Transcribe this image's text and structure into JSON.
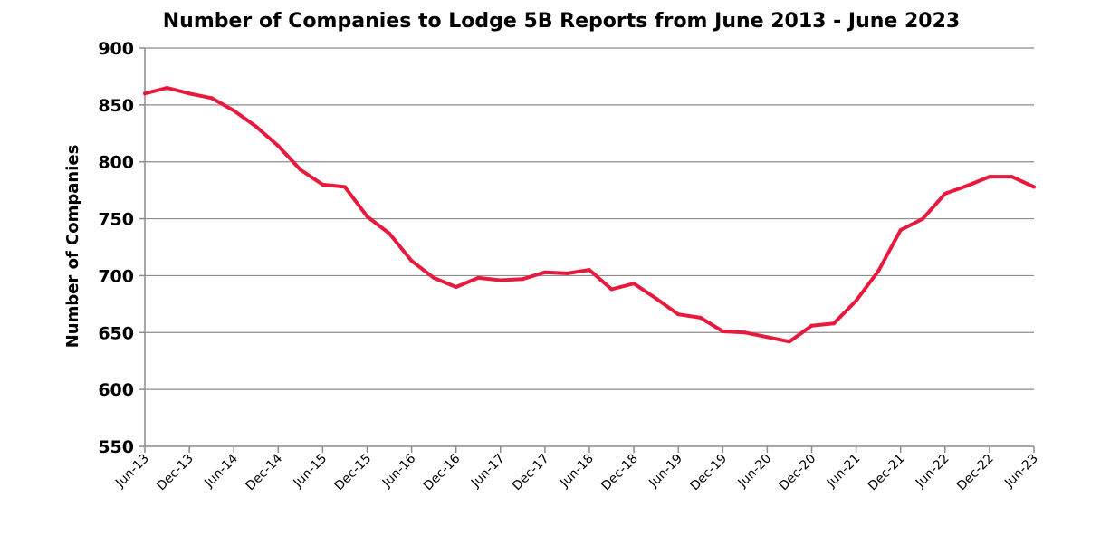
{
  "chart_data": {
    "type": "line",
    "title": "Number of Companies to Lodge 5B Reports from June 2013 - June 2023",
    "xlabel": "",
    "ylabel": "Number of Companies",
    "ylim": [
      550,
      900
    ],
    "y_ticks": [
      "550",
      "600",
      "650",
      "700",
      "750",
      "800",
      "850",
      "900"
    ],
    "grid": true,
    "legend": "none",
    "line_color": "#e8193c",
    "categories": [
      "Jun-13",
      "Dec-13",
      "Jun-14",
      "Dec-14",
      "Jun-15",
      "Dec-15",
      "Jun-16",
      "Dec-16",
      "Jun-17",
      "Dec-17",
      "Jun-18",
      "Dec-18",
      "Jun-19",
      "Dec-19",
      "Jun-20",
      "Dec-20",
      "Jun-21",
      "Dec-21",
      "Jun-22",
      "Dec-22",
      "Jun-23"
    ],
    "series": [
      {
        "name": "",
        "x": [
          "Jun-13",
          "Sep-13",
          "Dec-13",
          "Mar-14",
          "Jun-14",
          "Sep-14",
          "Dec-14",
          "Mar-15",
          "Jun-15",
          "Sep-15",
          "Dec-15",
          "Mar-16",
          "Jun-16",
          "Sep-16",
          "Dec-16",
          "Mar-17",
          "Jun-17",
          "Sep-17",
          "Dec-17",
          "Mar-18",
          "Jun-18",
          "Sep-18",
          "Dec-18",
          "Mar-19",
          "Jun-19",
          "Sep-19",
          "Dec-19",
          "Mar-20",
          "Jun-20",
          "Sep-20",
          "Dec-20",
          "Mar-21",
          "Jun-21",
          "Sep-21",
          "Dec-21",
          "Mar-22",
          "Jun-22",
          "Sep-22",
          "Dec-22",
          "Mar-23",
          "Jun-23"
        ],
        "values": [
          860,
          865,
          860,
          856,
          845,
          831,
          814,
          793,
          780,
          778,
          752,
          737,
          713,
          698,
          690,
          698,
          696,
          697,
          703,
          702,
          705,
          688,
          693,
          680,
          666,
          663,
          651,
          650,
          646,
          642,
          656,
          658,
          678,
          704,
          740,
          750,
          772,
          779,
          787,
          787,
          778
        ]
      }
    ]
  }
}
